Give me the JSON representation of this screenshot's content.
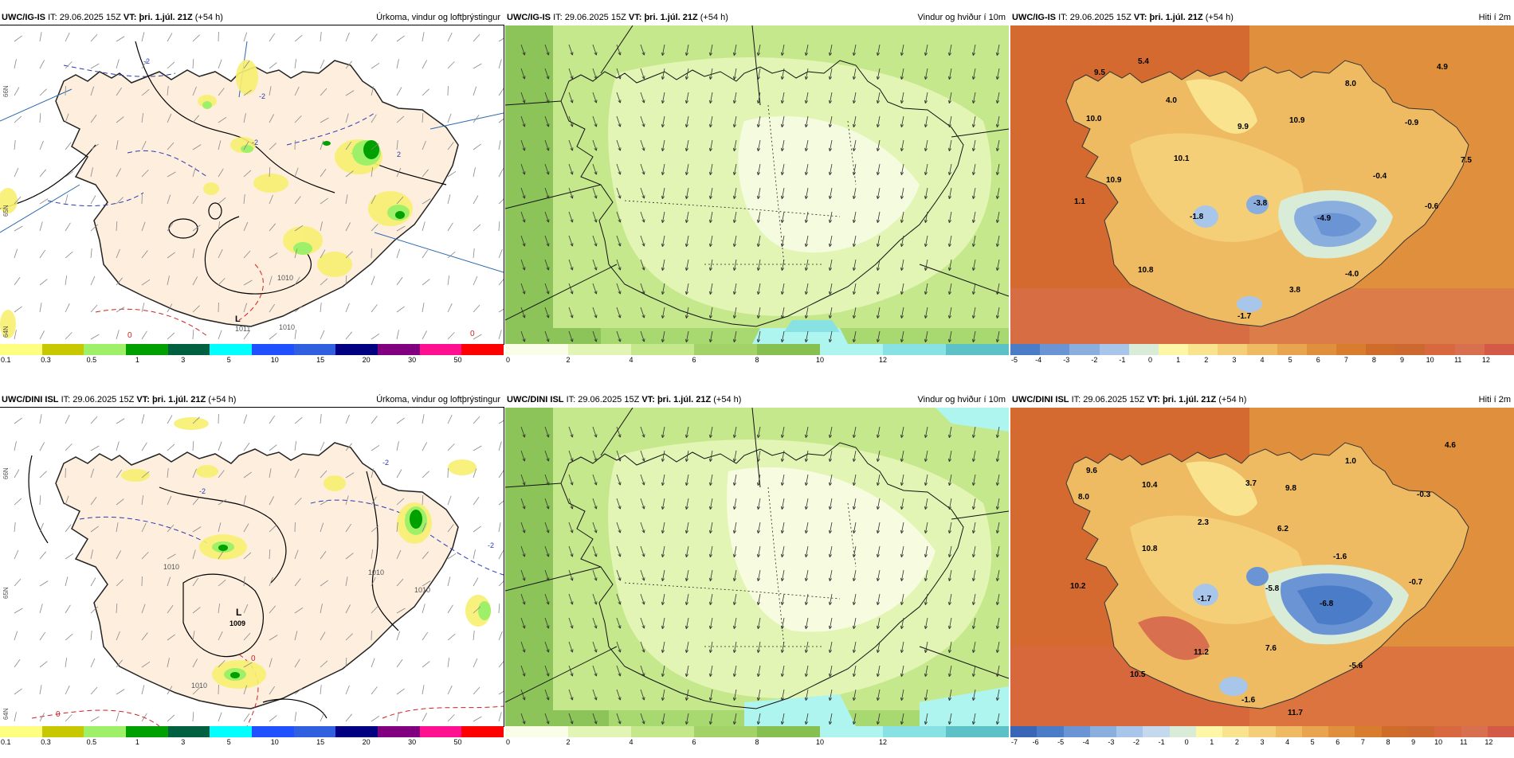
{
  "top": {
    "p1": {
      "model": "UWC/IG-IS",
      "it_label": "IT:",
      "it": "29.06.2025 15Z",
      "vt_label": "VT:",
      "vt": "þri. 1.júl. 21Z",
      "lead": "(+54 h)",
      "title": "Úrkoma, vindur og loftþrýstingur",
      "ticks": [
        "0.1",
        "0.3",
        "0.5",
        "1",
        "3",
        "5",
        "10",
        "15",
        "20",
        "30",
        "50"
      ],
      "pressure": [
        "1011",
        "1010",
        "1010"
      ],
      "iso": [
        "-2",
        "-2",
        "2",
        "-2",
        "0",
        "0"
      ],
      "lat": [
        "66N",
        "65N",
        "64N"
      ]
    },
    "p2": {
      "model": "UWC/IG-IS",
      "it_label": "IT:",
      "it": "29.06.2025 15Z",
      "vt_label": "VT:",
      "vt": "þri. 1.júl. 21Z",
      "lead": "(+54 h)",
      "title": "Vindur og hviður í 10m",
      "ticks": [
        "0",
        "2",
        "4",
        "6",
        "8",
        "10",
        "12"
      ]
    },
    "p3": {
      "model": "UWC/IG-IS",
      "it_label": "IT:",
      "it": "29.06.2025 15Z",
      "vt_label": "VT:",
      "vt": "þri. 1.júl. 21Z",
      "lead": "(+54 h)",
      "title": "Hiti í 2m",
      "ticks": [
        "-5",
        "-4",
        "-3",
        "-2",
        "-1",
        "0",
        "1",
        "2",
        "3",
        "4",
        "5",
        "6",
        "7",
        "8",
        "9",
        "10",
        "11",
        "12"
      ],
      "values": [
        "5.4",
        "9.5",
        "4.0",
        "10.0",
        "9.9",
        "10.9",
        "8.0",
        "4.9",
        "-0.9",
        "10.1",
        "10.9",
        "1.1",
        "-0.4",
        "7.5",
        "-1.8",
        "-3.8",
        "-4.9",
        "-0.6",
        "10.8",
        "-4.0",
        "3.8",
        "-1.7"
      ]
    }
  },
  "bottom": {
    "p1": {
      "model": "UWC/DINI ISL",
      "it_label": "IT:",
      "it": "29.06.2025 15Z",
      "vt_label": "VT:",
      "vt": "þri. 1.júl. 21Z",
      "lead": "(+54 h)",
      "title": "Úrkoma, vindur og loftþrýstingur",
      "ticks": [
        "0.1",
        "0.3",
        "0.5",
        "1",
        "3",
        "5",
        "10",
        "15",
        "20",
        "30",
        "50"
      ],
      "pressure": [
        "1010",
        "1010",
        "1010",
        "1010"
      ],
      "low_label": "L",
      "low_value": "1009",
      "iso": [
        "-2",
        "-2",
        "-2",
        "0",
        "0"
      ],
      "lat": [
        "66N",
        "65N",
        "64N"
      ]
    },
    "p2": {
      "model": "UWC/DINI ISL",
      "it_label": "IT:",
      "it": "29.06.2025 15Z",
      "vt_label": "VT:",
      "vt": "þri. 1.júl. 21Z",
      "lead": "(+54 h)",
      "title": "Vindur og hviður í 10m",
      "ticks": [
        "0",
        "2",
        "4",
        "6",
        "8",
        "10",
        "12"
      ]
    },
    "p3": {
      "model": "UWC/DINI ISL",
      "it_label": "IT:",
      "it": "29.06.2025 15Z",
      "vt_label": "VT:",
      "vt": "þri. 1.júl. 21Z",
      "lead": "(+54 h)",
      "title": "Hiti í 2m",
      "ticks": [
        "-7",
        "-6",
        "-5",
        "-4",
        "-3",
        "-2",
        "-1",
        "0",
        "1",
        "2",
        "3",
        "4",
        "5",
        "6",
        "7",
        "8",
        "9",
        "10",
        "11",
        "12"
      ],
      "values": [
        "4.6",
        "9.6",
        "1.0",
        "3.7",
        "10.4",
        "9.8",
        "-0.3",
        "8.0",
        "2.3",
        "6.2",
        "10.8",
        "-1.6",
        "10.2",
        "-0.7",
        "-1.7",
        "-5.8",
        "-6.8",
        "11.2",
        "7.6",
        "10.5",
        "-5.6",
        "-1.6",
        "11.7"
      ]
    }
  },
  "colors": {
    "precip": [
      "#fefe80",
      "#c8c800",
      "#9ef068",
      "#00a000",
      "#006040",
      "#00ffff",
      "#2050ff",
      "#3060e0",
      "#000080",
      "#800080",
      "#ff1090",
      "#ff0000"
    ],
    "wind": [
      "#fafde8",
      "#e2f5b4",
      "#c5e88c",
      "#a3d268",
      "#86c050",
      "#aef5f0",
      "#88e2e4",
      "#5cc2c8"
    ],
    "temp_top": [
      "#4a7cc8",
      "#6a94d4",
      "#8aaede",
      "#a8c6ea",
      "#d8ecd8",
      "#fff7a8",
      "#fae38e",
      "#f5cf78",
      "#efbb62",
      "#e8a44e",
      "#e0903c",
      "#d87c2e",
      "#d06c2a",
      "#cc6830",
      "#d86840",
      "#d87050",
      "#d45a48"
    ],
    "temp_bottom": [
      "#3a66b8",
      "#4a7cc8",
      "#6a94d4",
      "#8aaede",
      "#a8c6ea",
      "#c4d8ee",
      "#d8ecd8",
      "#fff7a8",
      "#fae38e",
      "#f5cf78",
      "#efbb62",
      "#e8a44e",
      "#e0903c",
      "#d87c2e",
      "#d06c2a",
      "#cc6830",
      "#d86840",
      "#d87050",
      "#d45a48"
    ],
    "land_precip": "#fdeede",
    "sea_precip": "#ffffff",
    "land_temp": "#e8a447",
    "sea_temp": "#d46a30"
  }
}
